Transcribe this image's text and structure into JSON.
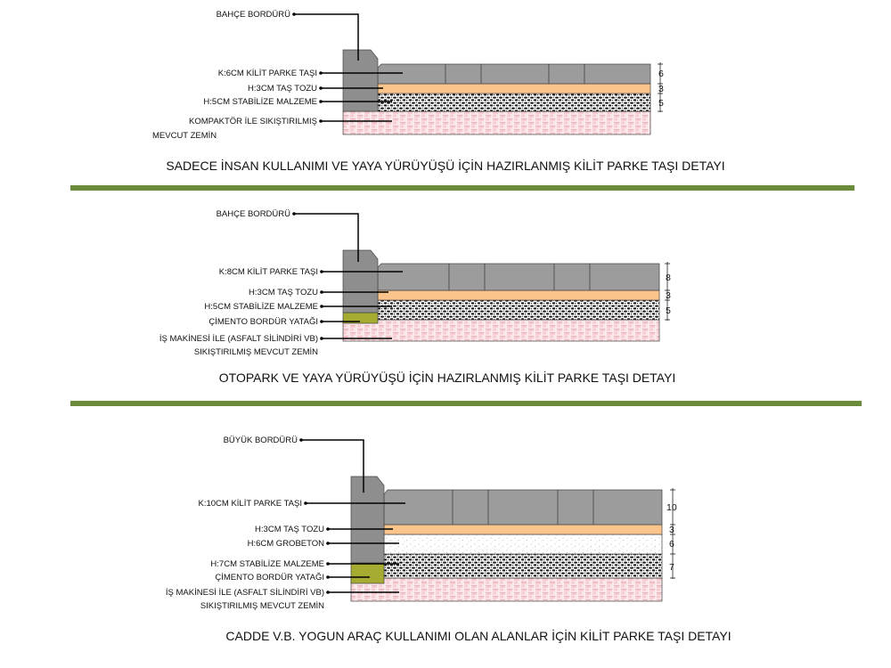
{
  "colors": {
    "separator": "#6b8c3a",
    "curb": "#8e8e8e",
    "paver": "#9c9c9c",
    "stone_dust": "#fbc48a",
    "concrete_bed": "#a5ac31",
    "subgrade": "#fce8ea",
    "subgrade_pattern": "#e59aa3",
    "gravel": "#1a1a1a"
  },
  "details": [
    {
      "caption": "SADECE İNSAN KULLANIMI VE YAYA YÜRÜYÜŞÜ İÇİN HAZIRLANMIŞ KİLİT PARKE TAŞI DETAYI",
      "labels": {
        "curb": "BAHÇE BORDÜRÜ",
        "paver": "K:6CM KİLİT PARKE TAŞI",
        "stone_dust": "H:3CM TAŞ TOZU",
        "stabilized": "H:5CM STABİLİZE MALZEME",
        "subgrade_1": "KOMPAKTÖR İLE SIKIŞTIRILMIŞ",
        "subgrade_2": "MEVCUT ZEMİN"
      },
      "dimensions": [
        "6",
        "3",
        "5"
      ]
    },
    {
      "caption": "OTOPARK VE YAYA YÜRÜYÜŞÜ İÇİN HAZIRLANMIŞ KİLİT PARKE TAŞI DETAYI",
      "labels": {
        "curb": "BAHÇE BORDÜRÜ",
        "paver": "K:8CM KİLİT PARKE TAŞI",
        "stone_dust": "H:3CM TAŞ TOZU",
        "stabilized": "H:5CM STABİLİZE MALZEME",
        "curb_bed": "ÇİMENTO BORDÜR YATAĞI",
        "subgrade_1": "İŞ MAKİNESİ İLE (ASFALT SİLİNDİRİ VB)",
        "subgrade_2": "SIKIŞTIRILMIŞ MEVCUT ZEMİN"
      },
      "dimensions": [
        "8",
        "3",
        "5"
      ]
    },
    {
      "caption": "CADDE V.B. YOGUN ARAÇ KULLANIMI OLAN ALANLAR İÇİN KİLİT PARKE TAŞI DETAYI",
      "labels": {
        "curb": "BÜYÜK BORDÜRÜ",
        "paver": "K:10CM KİLİT PARKE TAŞI",
        "stone_dust": "H:3CM TAŞ TOZU",
        "grobeton": "H:6CM GROBETON",
        "stabilized": "H:7CM STABİLİZE MALZEME",
        "curb_bed": "ÇİMENTO BORDÜR YATAĞI",
        "subgrade_1": "İŞ MAKİNESİ İLE (ASFALT SİLİNDİRİ VB)",
        "subgrade_2": "SIKIŞTIRILMIŞ MEVCUT ZEMİN"
      },
      "dimensions": [
        "10",
        "3",
        "6",
        "7"
      ]
    }
  ]
}
